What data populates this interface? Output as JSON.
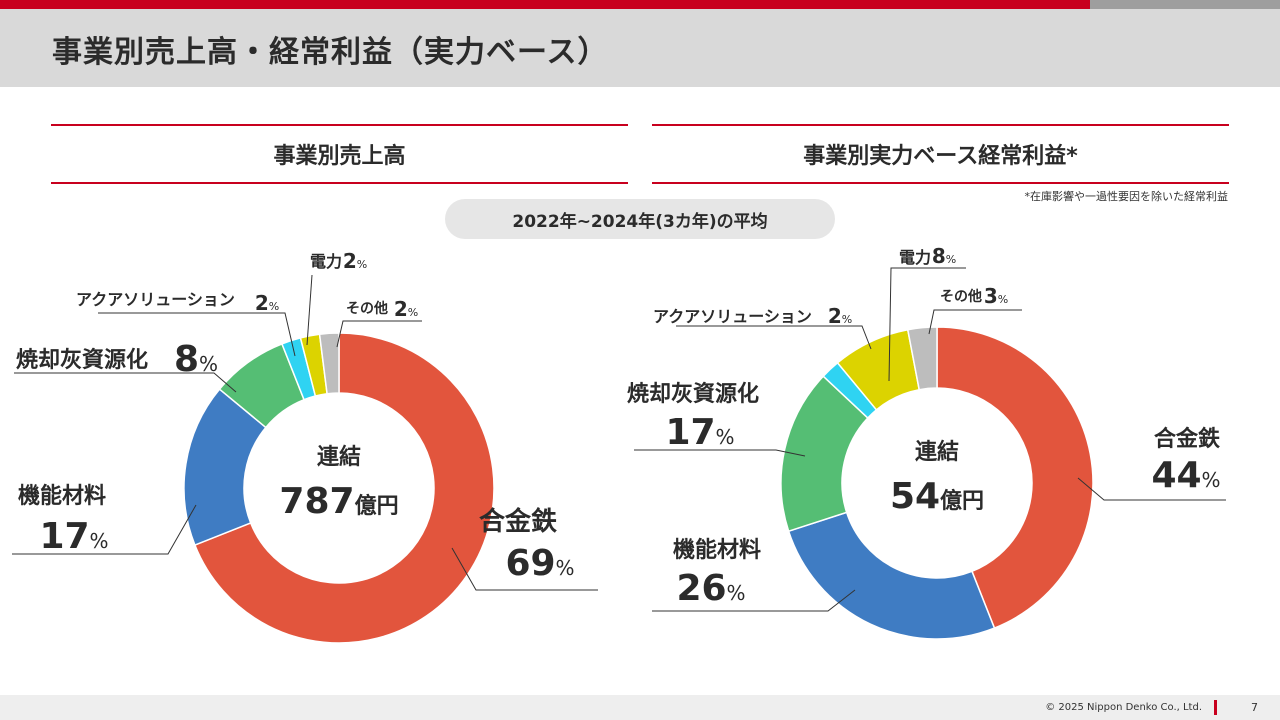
{
  "page": {
    "title": "事業別売上高・経常利益（実力ベース）",
    "left_header": "事業別売上高",
    "right_header": "事業別実力ベース経常利益*",
    "note": "*在庫影響や一過性要因を除いた経常利益",
    "period_label": "2022年~2024年(3カ年)の平均",
    "copyright": "© 2025 Nippon Denko Co., Ltd.",
    "page_number": "7"
  },
  "colors": {
    "accent": "#c8001e",
    "合金鉄": "#e2553d",
    "機能材料": "#3f7cc3",
    "焼却灰資源化": "#55be74",
    "アクアソリューション": "#2fd3f2",
    "電力": "#dcd300",
    "その他": "#bdbdbd"
  },
  "chart_data": [
    {
      "type": "pie",
      "center_label": "連結",
      "total_value": "787",
      "total_unit": "億円",
      "categories": [
        "合金鉄",
        "機能材料",
        "焼却灰資源化",
        "アクアソリューション",
        "電力",
        "その他"
      ],
      "values": [
        69,
        17,
        8,
        2,
        2,
        2
      ],
      "value_unit": "%"
    },
    {
      "type": "pie",
      "center_label": "連結",
      "total_value": "54",
      "total_unit": "億円",
      "categories": [
        "合金鉄",
        "機能材料",
        "焼却灰資源化",
        "アクアソリューション",
        "電力",
        "その他"
      ],
      "values": [
        44,
        26,
        17,
        2,
        8,
        3
      ],
      "value_unit": "%"
    }
  ]
}
